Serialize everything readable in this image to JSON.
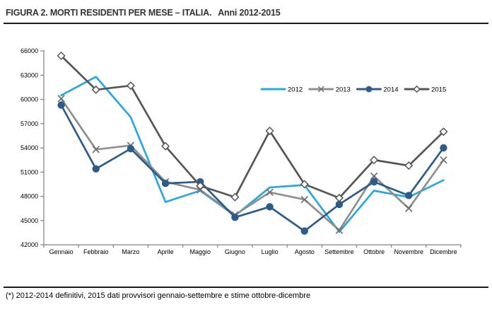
{
  "header": {
    "title": "FIGURA 2. MORTI RESIDENTI PER MESE – ITALIA.",
    "subtitle": "Anni 2012-2015"
  },
  "footnote": "(*) 2012-2014 definitivi, 2015 dati provvisori gennaio-settembre e stime ottobre-dicembre",
  "colors": {
    "series_2012": "#29A8DF",
    "series_2013": "#8F8F8F",
    "series_2014": "#2E5C8A",
    "series_2015": "#565656",
    "axis": "#808080",
    "text": "#000000",
    "title_text": "#333333"
  },
  "chart_data": {
    "type": "line",
    "title": "FIGURA 2. MORTI RESIDENTI PER MESE – ITALIA. Anni 2012-2015",
    "categories": [
      "Gennaio",
      "Febbraio",
      "Marzo",
      "Aprile",
      "Maggio",
      "Giugno",
      "Luglio",
      "Agosto",
      "Settembre",
      "Ottobre",
      "Novembre",
      "Dicembre"
    ],
    "series": [
      {
        "name": "2012",
        "marker": "none",
        "color": "#29A8DF",
        "values": [
          60500,
          62800,
          57800,
          47300,
          48700,
          45600,
          49100,
          49400,
          43600,
          48700,
          47900,
          50000
        ]
      },
      {
        "name": "2013",
        "marker": "x",
        "color": "#8F8F8F",
        "values": [
          60100,
          53800,
          54300,
          49800,
          48800,
          45700,
          48500,
          47600,
          43800,
          50500,
          46500,
          52500
        ]
      },
      {
        "name": "2014",
        "marker": "circle",
        "color": "#2E5C8A",
        "values": [
          59300,
          51400,
          53900,
          49600,
          49800,
          45400,
          46700,
          43700,
          47000,
          49800,
          48100,
          54000
        ]
      },
      {
        "name": "2015",
        "marker": "diamond",
        "color": "#565656",
        "values": [
          65400,
          61200,
          61700,
          54200,
          49300,
          47900,
          56100,
          49500,
          47800,
          52500,
          51800,
          56000
        ]
      }
    ],
    "ylim": [
      42000,
      66000
    ],
    "yticks": [
      66000,
      63000,
      60000,
      57000,
      54000,
      51000,
      48000,
      45000,
      42000
    ],
    "xlabel": "",
    "ylabel": "",
    "grid": false,
    "legend_position": "inside-top-right"
  }
}
